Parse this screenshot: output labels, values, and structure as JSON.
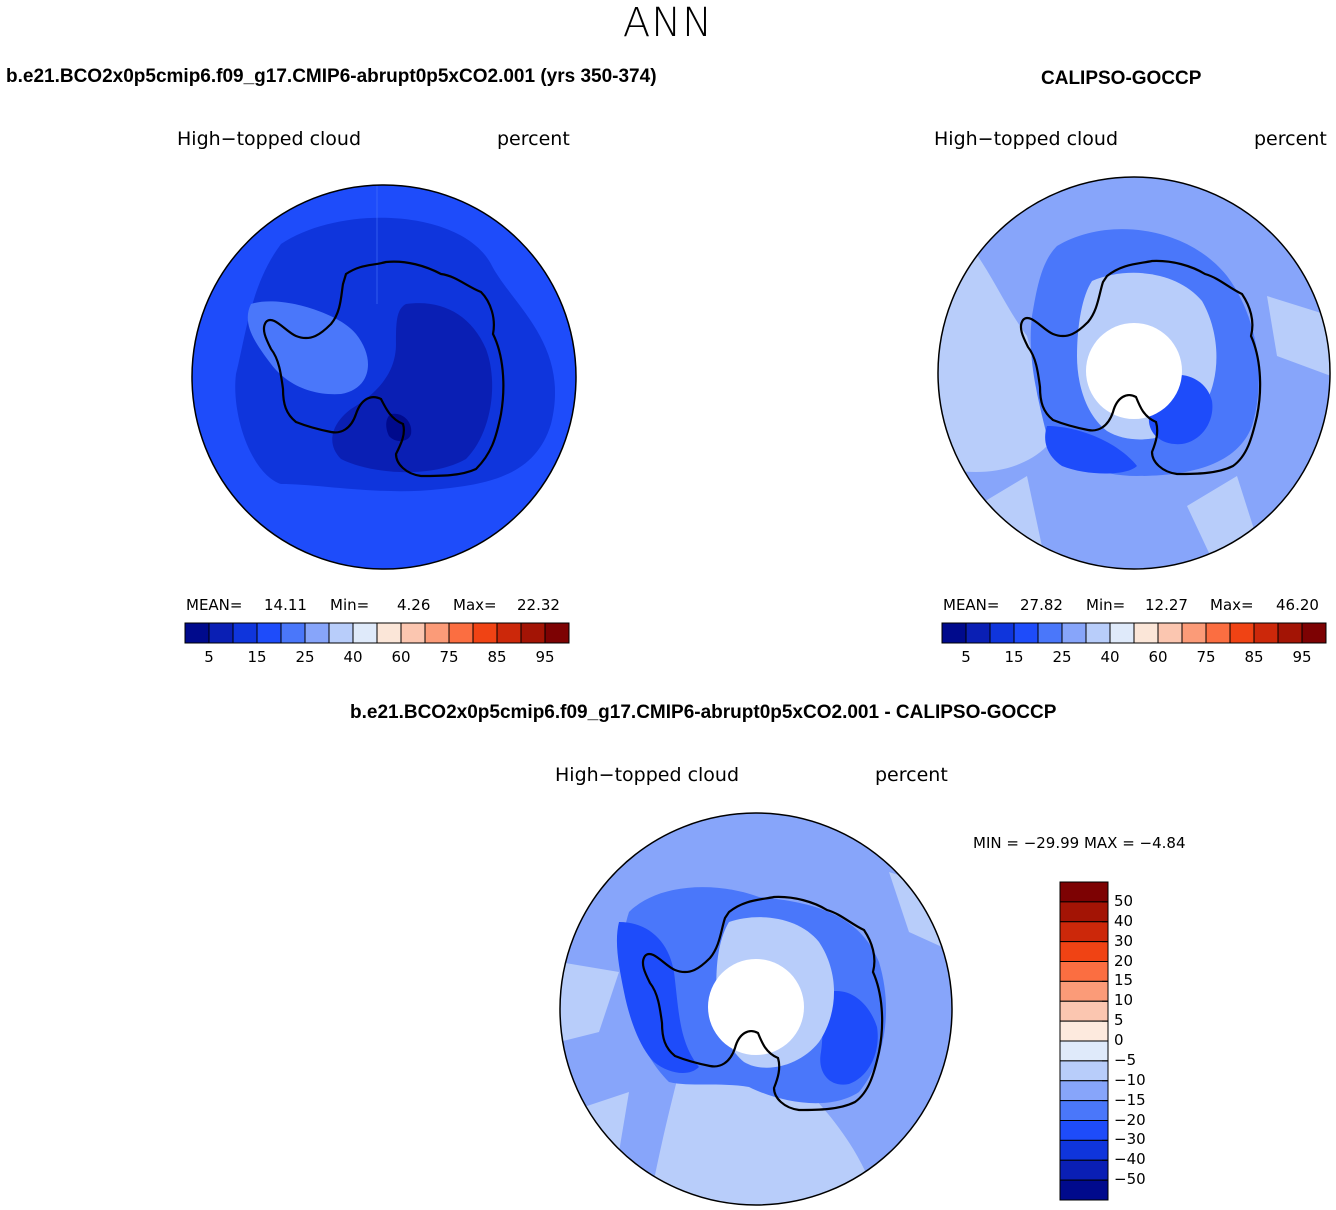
{
  "page": {
    "title": "ANN"
  },
  "panels": {
    "model": {
      "case_title": "b.e21.BCO2x0p5cmip6.f09_g17.CMIP6-abrupt0p5xCO2.001 (yrs 350-374)",
      "variable": "High−topped cloud",
      "units": "percent",
      "mean_label": "MEAN=",
      "mean_value": "14.11",
      "min_label": "Min=",
      "min_value": "4.26",
      "max_label": "Max=",
      "max_value": "22.32"
    },
    "obs": {
      "case_title": "CALIPSO-GOCCP",
      "variable": "High−topped cloud",
      "units": "percent",
      "mean_label": "MEAN=",
      "mean_value": "27.82",
      "min_label": "Min=",
      "min_value": "12.27",
      "max_label": "Max=",
      "max_value": "46.20"
    },
    "diff": {
      "case_title": "b.e21.BCO2x0p5cmip6.f09_g17.CMIP6-abrupt0p5xCO2.001 - CALIPSO-GOCCP",
      "variable": "High−topped cloud",
      "units": "percent",
      "minmax_text": "MIN = −29.99  MAX =   −4.84"
    }
  },
  "colorbar_abs": {
    "colors": [
      "#000a8c",
      "#0a1fb4",
      "#0f35dc",
      "#1e4cfa",
      "#4a77fa",
      "#87a5fa",
      "#b8cdfa",
      "#dfeafa",
      "#fbe6d8",
      "#fbc6b0",
      "#fb9b78",
      "#fb6e41",
      "#f04314",
      "#cc280a",
      "#a31405",
      "#7d0203"
    ],
    "labels": [
      "5",
      "15",
      "25",
      "40",
      "60",
      "75",
      "85",
      "95"
    ]
  },
  "colorbar_diff": {
    "colors": [
      "#000a8c",
      "#0a1fb4",
      "#0f35dc",
      "#1e4cfa",
      "#4a77fa",
      "#87a5fa",
      "#b8cdfa",
      "#dfeafa",
      "#fdeade",
      "#fbc6b0",
      "#fb9b78",
      "#fb6e41",
      "#f04314",
      "#cc280a",
      "#a31405",
      "#7d0203"
    ],
    "labels": [
      "−50",
      "−40",
      "−30",
      "−20",
      "−15",
      "−10",
      "−5",
      "0",
      "5",
      "10",
      "15",
      "20",
      "30",
      "40",
      "50"
    ]
  },
  "map_colors": {
    "model_base": "#1e4cfa",
    "model_mid": "#0f35dc",
    "model_dark": "#0a1fb4",
    "model_darkest": "#000a8c",
    "model_light": "#4a77fa",
    "obs_base": "#87a5fa",
    "obs_light": "#b8cdfa",
    "obs_lighter": "#dfeafa",
    "obs_mid": "#4a77fa",
    "obs_dark": "#1e4cfa",
    "diff_base": "#87a5fa",
    "diff_mid": "#4a77fa",
    "diff_dark": "#1e4cfa",
    "diff_light": "#b8cdfa"
  }
}
